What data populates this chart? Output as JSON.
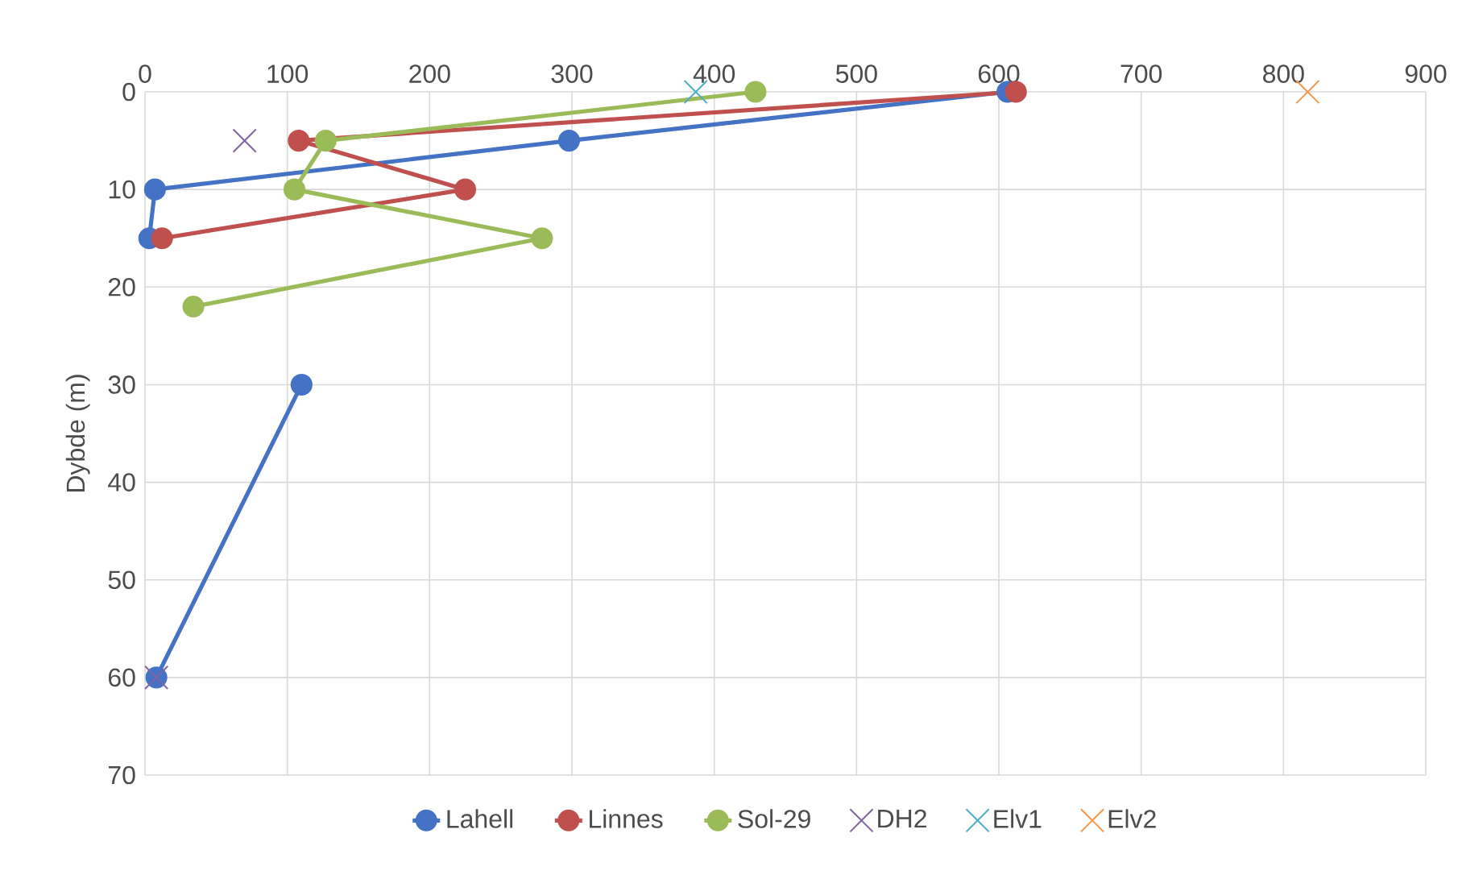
{
  "chart_data": {
    "type": "line",
    "ylabel": "Dybde (m)",
    "xlim": [
      0,
      900
    ],
    "xticks": [
      0,
      100,
      200,
      300,
      400,
      500,
      600,
      700,
      800,
      900
    ],
    "ylim": [
      70,
      0
    ],
    "yticks": [
      0,
      10,
      20,
      30,
      40,
      50,
      60,
      70
    ],
    "grid": true,
    "legend": "bottom",
    "line_style": "solid",
    "series": [
      {
        "name": "Lahell",
        "color": "#4472c4",
        "marker": "circle",
        "x": [
          606,
          298,
          7,
          3,
          null,
          110,
          8
        ],
        "values": [
          0,
          5,
          10,
          15,
          null,
          30,
          60
        ]
      },
      {
        "name": "Linnes",
        "color": "#c0504d",
        "marker": "circle",
        "x": [
          612,
          108,
          225,
          12
        ],
        "values": [
          0,
          5,
          10,
          15
        ]
      },
      {
        "name": "Sol-29",
        "color": "#9bbb59",
        "marker": "circle",
        "x": [
          429,
          127,
          105,
          279,
          34
        ],
        "values": [
          0,
          5,
          10,
          15,
          22
        ]
      },
      {
        "name": "DH2",
        "type": "scatter",
        "color": "#8064a2",
        "marker": "cross",
        "x": [
          70,
          8
        ],
        "values": [
          5,
          60
        ]
      },
      {
        "name": "Elv1",
        "type": "scatter",
        "color": "#4bacc6",
        "marker": "cross",
        "x": [
          387
        ],
        "values": [
          0
        ]
      },
      {
        "name": "Elv2",
        "type": "scatter",
        "color": "#f79646",
        "marker": "cross",
        "x": [
          817
        ],
        "values": [
          0
        ]
      }
    ]
  }
}
